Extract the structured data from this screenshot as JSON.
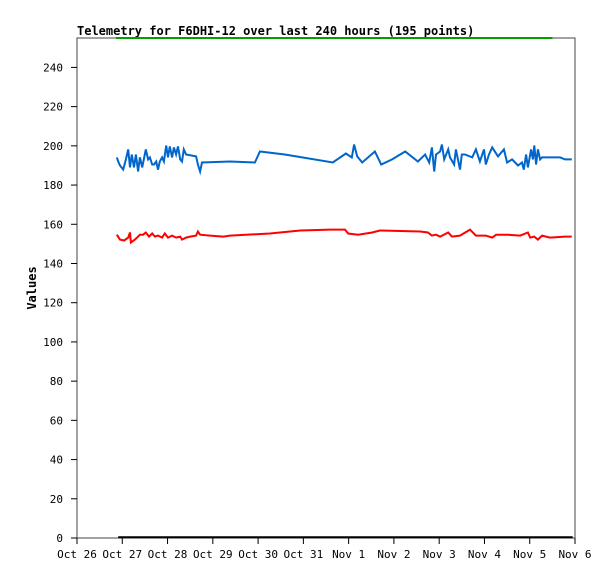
{
  "chart_data": {
    "type": "line",
    "title": "Telemetry for F6DHI-12 over last 240 hours (195 points)",
    "xlabel": "",
    "ylabel": "Values",
    "x_unit": "days since Oct 26 00:00",
    "xlim": [
      0,
      11
    ],
    "ylim": [
      0,
      255
    ],
    "grid": false,
    "legend": "none",
    "x_ticks": [
      {
        "value": 0,
        "label": "Oct 26"
      },
      {
        "value": 1,
        "label": "Oct 27"
      },
      {
        "value": 2,
        "label": "Oct 28"
      },
      {
        "value": 3,
        "label": "Oct 29"
      },
      {
        "value": 4,
        "label": "Oct 30"
      },
      {
        "value": 5,
        "label": "Oct 31"
      },
      {
        "value": 6,
        "label": "Nov 1"
      },
      {
        "value": 7,
        "label": "Nov 2"
      },
      {
        "value": 8,
        "label": "Nov 3"
      },
      {
        "value": 9,
        "label": "Nov 4"
      },
      {
        "value": 10,
        "label": "Nov 5"
      },
      {
        "value": 11,
        "label": "Nov 6"
      }
    ],
    "y_ticks": [
      0,
      20,
      40,
      60,
      80,
      100,
      120,
      140,
      160,
      180,
      200,
      220,
      240
    ],
    "series": [
      {
        "name": "series-green",
        "color": "#00a000",
        "points": [
          [
            0.86,
            255
          ],
          [
            10.5,
            255
          ]
        ]
      },
      {
        "name": "series-blue",
        "color": "#0066cc",
        "points": [
          [
            0.88,
            194.1
          ],
          [
            0.91,
            192.0
          ],
          [
            0.95,
            190.0
          ],
          [
            1.02,
            187.9
          ],
          [
            1.08,
            193.1
          ],
          [
            1.13,
            198.2
          ],
          [
            1.17,
            189.0
          ],
          [
            1.21,
            195.6
          ],
          [
            1.26,
            189.0
          ],
          [
            1.3,
            195.6
          ],
          [
            1.35,
            186.9
          ],
          [
            1.39,
            194.1
          ],
          [
            1.44,
            189.0
          ],
          [
            1.52,
            198.2
          ],
          [
            1.57,
            193.1
          ],
          [
            1.61,
            194.1
          ],
          [
            1.66,
            190.5
          ],
          [
            1.7,
            190.5
          ],
          [
            1.75,
            192.0
          ],
          [
            1.79,
            187.9
          ],
          [
            1.83,
            192.0
          ],
          [
            1.88,
            194.1
          ],
          [
            1.92,
            192.0
          ],
          [
            1.97,
            200.2
          ],
          [
            2.01,
            194.1
          ],
          [
            2.05,
            199.7
          ],
          [
            2.1,
            194.1
          ],
          [
            2.14,
            199.2
          ],
          [
            2.19,
            195.6
          ],
          [
            2.23,
            199.7
          ],
          [
            2.28,
            193.1
          ],
          [
            2.32,
            192.0
          ],
          [
            2.36,
            198.2
          ],
          [
            2.41,
            195.6
          ],
          [
            2.63,
            194.6
          ],
          [
            2.67,
            190.5
          ],
          [
            2.72,
            186.9
          ],
          [
            2.76,
            191.5
          ],
          [
            3.38,
            192.0
          ],
          [
            3.93,
            191.5
          ],
          [
            4.04,
            197.1
          ],
          [
            4.59,
            195.6
          ],
          [
            5.65,
            191.5
          ],
          [
            5.94,
            196.1
          ],
          [
            6.07,
            194.1
          ],
          [
            6.12,
            200.7
          ],
          [
            6.19,
            194.6
          ],
          [
            6.3,
            191.5
          ],
          [
            6.58,
            197.1
          ],
          [
            6.72,
            190.5
          ],
          [
            6.96,
            193.1
          ],
          [
            7.25,
            197.1
          ],
          [
            7.53,
            192.0
          ],
          [
            7.69,
            195.6
          ],
          [
            7.78,
            191.5
          ],
          [
            7.84,
            199.2
          ],
          [
            7.89,
            186.9
          ],
          [
            7.93,
            195.6
          ],
          [
            8.02,
            197.1
          ],
          [
            8.06,
            200.7
          ],
          [
            8.11,
            193.1
          ],
          [
            8.2,
            198.2
          ],
          [
            8.24,
            194.1
          ],
          [
            8.33,
            190.5
          ],
          [
            8.37,
            198.2
          ],
          [
            8.46,
            187.9
          ],
          [
            8.5,
            195.6
          ],
          [
            8.57,
            195.6
          ],
          [
            8.73,
            194.1
          ],
          [
            8.81,
            198.2
          ],
          [
            8.9,
            192.0
          ],
          [
            8.99,
            198.2
          ],
          [
            9.03,
            190.5
          ],
          [
            9.1,
            195.6
          ],
          [
            9.17,
            199.2
          ],
          [
            9.3,
            194.6
          ],
          [
            9.43,
            198.2
          ],
          [
            9.5,
            191.5
          ],
          [
            9.61,
            193.1
          ],
          [
            9.74,
            190.0
          ],
          [
            9.83,
            191.5
          ],
          [
            9.87,
            187.9
          ],
          [
            9.92,
            195.6
          ],
          [
            9.96,
            189.0
          ],
          [
            10.03,
            198.2
          ],
          [
            10.07,
            193.1
          ],
          [
            10.1,
            200.2
          ],
          [
            10.14,
            190.5
          ],
          [
            10.18,
            198.2
          ],
          [
            10.23,
            193.1
          ],
          [
            10.27,
            194.1
          ],
          [
            10.67,
            194.1
          ],
          [
            10.78,
            193.1
          ],
          [
            10.93,
            193.1
          ]
        ]
      },
      {
        "name": "series-red",
        "color": "#ff0000",
        "points": [
          [
            0.88,
            154.7
          ],
          [
            0.95,
            152.2
          ],
          [
            1.04,
            151.7
          ],
          [
            1.13,
            153.2
          ],
          [
            1.17,
            155.8
          ],
          [
            1.19,
            150.7
          ],
          [
            1.28,
            152.2
          ],
          [
            1.35,
            153.7
          ],
          [
            1.39,
            154.7
          ],
          [
            1.46,
            154.7
          ],
          [
            1.52,
            155.8
          ],
          [
            1.59,
            153.7
          ],
          [
            1.66,
            155.3
          ],
          [
            1.72,
            153.7
          ],
          [
            1.79,
            154.2
          ],
          [
            1.88,
            153.2
          ],
          [
            1.94,
            155.3
          ],
          [
            2.01,
            153.2
          ],
          [
            2.1,
            154.2
          ],
          [
            2.19,
            153.2
          ],
          [
            2.28,
            153.7
          ],
          [
            2.32,
            152.2
          ],
          [
            2.41,
            153.2
          ],
          [
            2.5,
            153.7
          ],
          [
            2.63,
            154.2
          ],
          [
            2.67,
            156.3
          ],
          [
            2.72,
            154.7
          ],
          [
            2.94,
            154.2
          ],
          [
            3.23,
            153.7
          ],
          [
            3.38,
            154.2
          ],
          [
            4.26,
            155.3
          ],
          [
            4.93,
            156.8
          ],
          [
            5.59,
            157.3
          ],
          [
            5.92,
            157.3
          ],
          [
            5.99,
            155.3
          ],
          [
            6.21,
            154.7
          ],
          [
            6.52,
            155.8
          ],
          [
            6.69,
            156.8
          ],
          [
            7.58,
            156.3
          ],
          [
            7.75,
            155.8
          ],
          [
            7.84,
            154.2
          ],
          [
            7.93,
            154.7
          ],
          [
            8.02,
            153.7
          ],
          [
            8.2,
            155.8
          ],
          [
            8.28,
            153.7
          ],
          [
            8.46,
            154.2
          ],
          [
            8.68,
            157.3
          ],
          [
            8.81,
            154.2
          ],
          [
            9.03,
            154.2
          ],
          [
            9.17,
            153.2
          ],
          [
            9.26,
            154.7
          ],
          [
            9.52,
            154.7
          ],
          [
            9.79,
            154.2
          ],
          [
            9.96,
            155.8
          ],
          [
            10.01,
            153.2
          ],
          [
            10.1,
            153.7
          ],
          [
            10.18,
            152.2
          ],
          [
            10.27,
            154.2
          ],
          [
            10.45,
            153.2
          ],
          [
            10.78,
            153.7
          ],
          [
            10.93,
            153.7
          ]
        ]
      },
      {
        "name": "series-black",
        "color": "#000000",
        "points": [
          [
            0.91,
            0.4
          ],
          [
            10.95,
            0.4
          ]
        ]
      }
    ]
  }
}
